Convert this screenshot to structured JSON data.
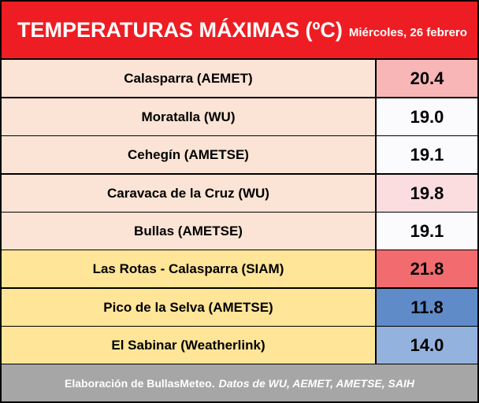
{
  "header": {
    "title": "TEMPERATURAS MÁXIMAS (ºC)",
    "subtitle": "Miércoles, 26 febrero"
  },
  "rows": [
    {
      "station": "Calasparra (AEMET)",
      "value": "20.4",
      "row_bg": "#fbe4d5",
      "value_bg": "#f8b6b6"
    },
    {
      "station": "Moratalla (WU)",
      "value": "19.0",
      "row_bg": "#fbe4d5",
      "value_bg": "#fbfbfe"
    },
    {
      "station": "Cehegín (AMETSE)",
      "value": "19.1",
      "row_bg": "#fbe4d5",
      "value_bg": "#fbfbfe"
    },
    {
      "station": "Caravaca de la Cruz (WU)",
      "value": "19.8",
      "row_bg": "#fbe4d5",
      "value_bg": "#fbdde0"
    },
    {
      "station": "Bullas (AMETSE)",
      "value": "19.1",
      "row_bg": "#fbe4d5",
      "value_bg": "#fbfbfe"
    },
    {
      "station": "Las Rotas - Calasparra (SIAM)",
      "value": "21.8",
      "row_bg": "#fee598",
      "value_bg": "#f26b6e"
    },
    {
      "station": "Pico de la Selva (AMETSE)",
      "value": "11.8",
      "row_bg": "#fee598",
      "value_bg": "#5f8cc8"
    },
    {
      "station": "El Sabinar (Weatherlink)",
      "value": "14.0",
      "row_bg": "#fee598",
      "value_bg": "#93b2dd"
    }
  ],
  "footer": {
    "text": "Elaboración de BullasMeteo.",
    "italic_text": "Datos de WU, AEMET, AMETSE, SAIH"
  }
}
